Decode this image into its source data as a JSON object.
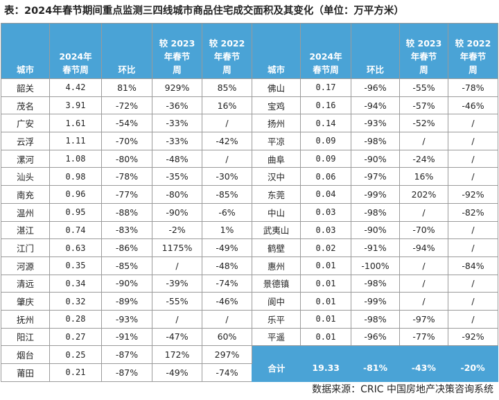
{
  "title": "表：2024年春节期间重点监测三四线城市商品住宅成交面积及其变化（单位：万平方米）",
  "table": {
    "headers": [
      "城市",
      "2024年\n春节周",
      "环比",
      "较 2023\n年春节\n周",
      "较 2022\n年春节\n周"
    ],
    "left_rows": [
      [
        "韶关",
        "4.42",
        "81%",
        "929%",
        "85%"
      ],
      [
        "茂名",
        "3.91",
        "-72%",
        "-36%",
        "16%"
      ],
      [
        "广安",
        "1.61",
        "-54%",
        "-33%",
        "/"
      ],
      [
        "云浮",
        "1.11",
        "-70%",
        "-33%",
        "-42%"
      ],
      [
        "漯河",
        "1.08",
        "-80%",
        "-48%",
        "/"
      ],
      [
        "汕头",
        "0.98",
        "-78%",
        "-35%",
        "-30%"
      ],
      [
        "南充",
        "0.96",
        "-77%",
        "-80%",
        "-85%"
      ],
      [
        "温州",
        "0.95",
        "-88%",
        "-90%",
        "-6%"
      ],
      [
        "湛江",
        "0.74",
        "-83%",
        "-2%",
        "1%"
      ],
      [
        "江门",
        "0.63",
        "-86%",
        "1175%",
        "-49%"
      ],
      [
        "河源",
        "0.35",
        "-85%",
        "/",
        "-48%"
      ],
      [
        "清远",
        "0.34",
        "-90%",
        "-39%",
        "-74%"
      ],
      [
        "肇庆",
        "0.32",
        "-89%",
        "-55%",
        "-46%"
      ],
      [
        "抚州",
        "0.28",
        "-93%",
        "/",
        "/"
      ],
      [
        "阳江",
        "0.27",
        "-91%",
        "-47%",
        "60%"
      ],
      [
        "烟台",
        "0.25",
        "-87%",
        "172%",
        "297%"
      ],
      [
        "莆田",
        "0.21",
        "-87%",
        "-49%",
        "-74%"
      ]
    ],
    "right_rows": [
      [
        "佛山",
        "0.17",
        "-96%",
        "-55%",
        "-78%"
      ],
      [
        "宝鸡",
        "0.16",
        "-94%",
        "-57%",
        "-46%"
      ],
      [
        "扬州",
        "0.14",
        "-93%",
        "-52%",
        "/"
      ],
      [
        "平凉",
        "0.09",
        "-98%",
        "/",
        "/"
      ],
      [
        "曲阜",
        "0.09",
        "-90%",
        "-24%",
        "/"
      ],
      [
        "汉中",
        "0.06",
        "-97%",
        "16%",
        "/"
      ],
      [
        "东莞",
        "0.04",
        "-99%",
        "202%",
        "-92%"
      ],
      [
        "中山",
        "0.03",
        "-98%",
        "/",
        "-82%"
      ],
      [
        "武夷山",
        "0.03",
        "-90%",
        "-70%",
        "/"
      ],
      [
        "鹤壁",
        "0.02",
        "-91%",
        "-94%",
        "/"
      ],
      [
        "惠州",
        "0.01",
        "-100%",
        "/",
        "-84%"
      ],
      [
        "景德镇",
        "0.01",
        "-98%",
        "/",
        "/"
      ],
      [
        "阆中",
        "0.01",
        "-99%",
        "/",
        "/"
      ],
      [
        "乐平",
        "0.01",
        "-98%",
        "-97%",
        "/"
      ],
      [
        "平遥",
        "0.01",
        "-96%",
        "-77%",
        "-92%"
      ]
    ],
    "total": [
      "合计",
      "19.33",
      "-81%",
      "-43%",
      "-20%"
    ]
  },
  "source": "数据来源：CRIC 中国房地产决策咨询系统"
}
